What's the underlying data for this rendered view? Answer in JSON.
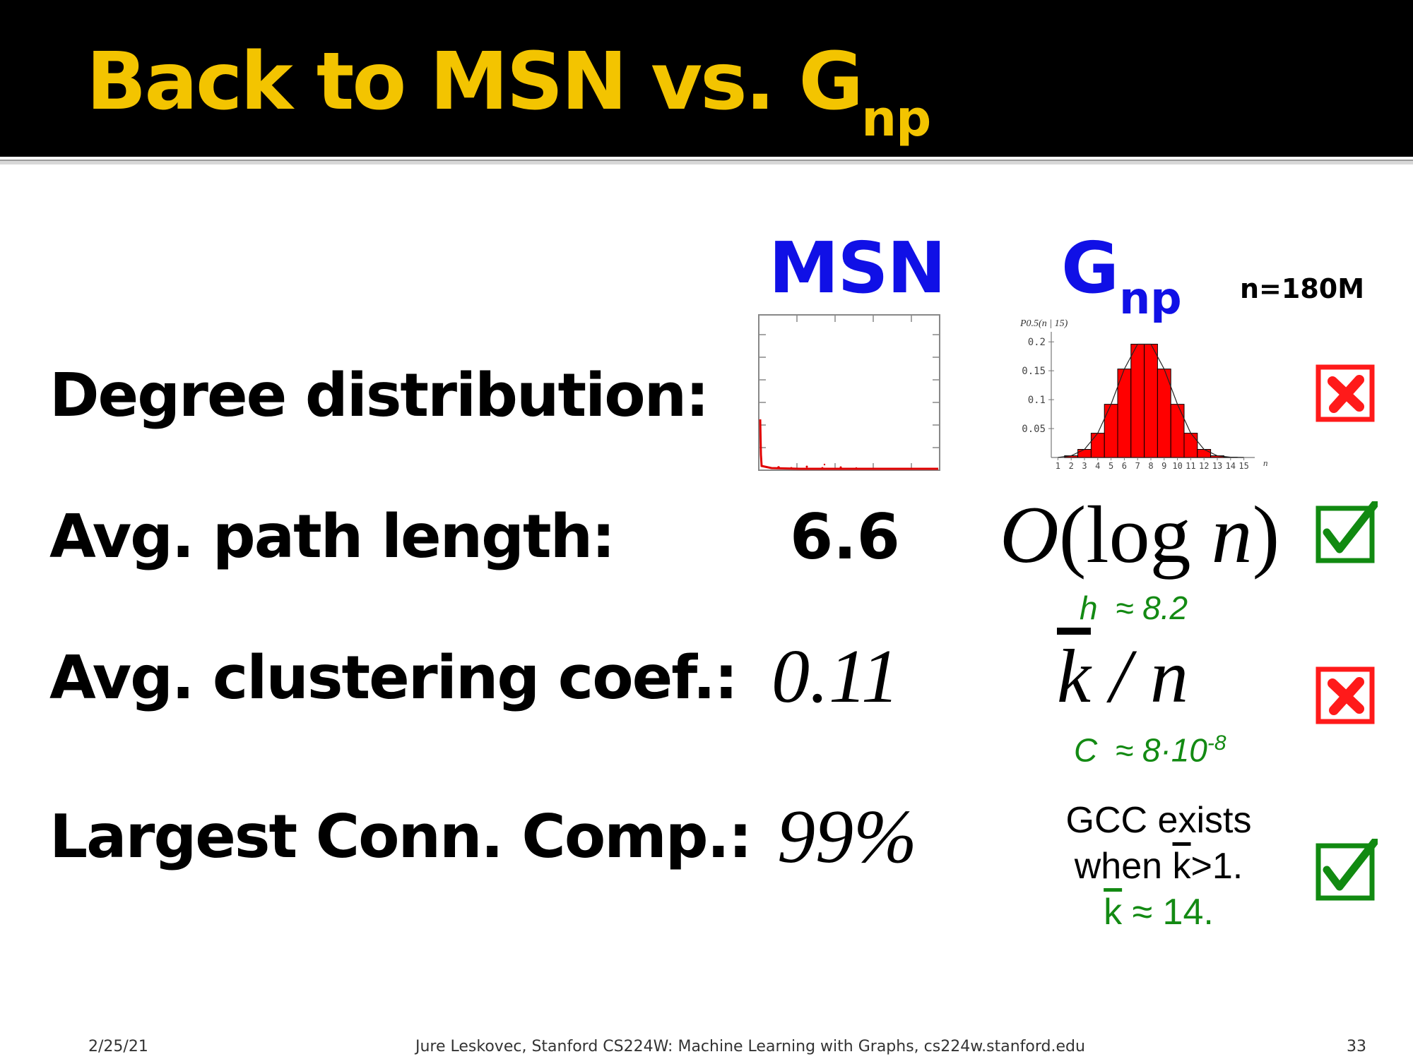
{
  "slide": {
    "title_main": "Back to MSN vs. G",
    "title_sub": "np"
  },
  "columns": {
    "msn": "MSN",
    "gnp_main": "G",
    "gnp_sub": "np",
    "n_label": "n=180M"
  },
  "rows": {
    "degree": {
      "label": "Degree distribution:"
    },
    "path": {
      "label": "Avg. path length:",
      "msn": "6.6",
      "gnp_O": "O",
      "gnp_rest": "(log ",
      "gnp_n": "n",
      "gnp_close": ")",
      "note_var": "h",
      "note_val": "≈ 8.2"
    },
    "clustering": {
      "label": "Avg. clustering coef.:",
      "msn": "0.11",
      "gnp_k": "k",
      "gnp_slash": " / ",
      "gnp_n": "n",
      "note_var": "C",
      "note_val": "≈ 8·10",
      "note_exp": "-8"
    },
    "lcc": {
      "label": "Largest Conn. Comp.:",
      "msn": "99%",
      "gcc_line1": "GCC exists",
      "gcc_when": "when ",
      "gcc_k": "k",
      "gcc_gt": ">1.",
      "gcc_k2": "k",
      "gcc_val": " ≈ 14."
    }
  },
  "histogram": {
    "ylabel": "P0.5(n | 15)",
    "xlabel": "n",
    "yticks": [
      "0.2",
      "0.15",
      "0.1",
      "0.05"
    ],
    "xticks": [
      "1",
      "2",
      "3",
      "4",
      "5",
      "6",
      "7",
      "8",
      "9",
      "10",
      "11",
      "12",
      "13",
      "14",
      "15"
    ]
  },
  "chart_data": {
    "type": "bar",
    "ylabel": "P0.5(n | 15)",
    "xlabel": "n",
    "categories": [
      1,
      2,
      3,
      4,
      5,
      6,
      7,
      8,
      9,
      10,
      11,
      12,
      13,
      14,
      15
    ],
    "values": [
      0.0,
      0.003,
      0.014,
      0.042,
      0.092,
      0.153,
      0.196,
      0.196,
      0.153,
      0.092,
      0.042,
      0.014,
      0.003,
      0.0005,
      0.0
    ],
    "ylim": [
      0,
      0.21
    ],
    "colors": {
      "bar": "#ff0000",
      "outline": "#000000"
    }
  },
  "marks": {
    "degree": "cross",
    "path": "check",
    "clustering": "cross",
    "lcc": "check"
  },
  "footer": {
    "date": "2/25/21",
    "credit": "Jure Leskovec, Stanford CS224W: Machine Learning with Graphs, cs224w.stanford.edu",
    "page": "33"
  }
}
